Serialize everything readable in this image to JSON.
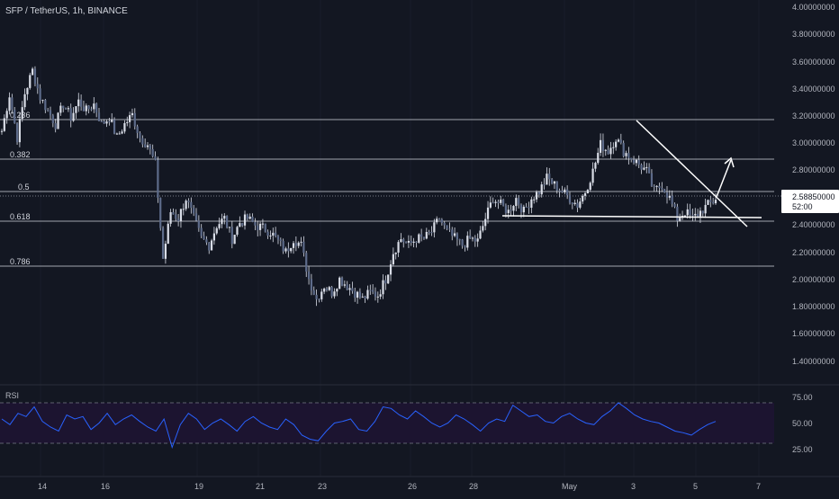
{
  "header": {
    "symbol_title": "SFP / TetherUS, 1h, BINANCE"
  },
  "price_scale": {
    "ticks": [
      "4.00000000",
      "3.80000000",
      "3.60000000",
      "3.40000000",
      "3.20000000",
      "3.00000000",
      "2.80000000",
      "2.60000000",
      "2.40000000",
      "2.20000000",
      "2.00000000",
      "1.80000000",
      "1.60000000",
      "1.40000000"
    ],
    "last_price": "2.58850000",
    "countdown": "52:00"
  },
  "rsi_panel": {
    "label": "RSI",
    "ticks": [
      "75.00",
      "50.00",
      "25.00"
    ]
  },
  "fib_labels": [
    "0.236",
    "0.382",
    "0.5",
    "0.618",
    "0.786"
  ],
  "time_axis": {
    "labels": [
      "14",
      "16",
      "19",
      "21",
      "23",
      "26",
      "28",
      "May",
      "3",
      "5",
      "7"
    ]
  },
  "colors": {
    "background": "#131722",
    "candles": "#d9dde7",
    "rsi_line": "#2962ff",
    "rsi_band": "#1c1430",
    "text": "#b2b5be",
    "last_price_bg": "#ffffff"
  },
  "chart_data": [
    {
      "type": "candlestick",
      "title": "SFP / TetherUS, 1h, BINANCE",
      "ylim": [
        1.3,
        4.0
      ],
      "y_ticks": [
        4.0,
        3.8,
        3.6,
        3.4,
        3.2,
        3.0,
        2.8,
        2.6,
        2.4,
        2.2,
        2.0,
        1.8,
        1.6,
        1.4
      ],
      "x_tick_labels": [
        "14",
        "16",
        "19",
        "21",
        "23",
        "26",
        "28",
        "May",
        "3",
        "5",
        "7"
      ],
      "fib_levels": [
        {
          "label": "0.236",
          "price": 3.16
        },
        {
          "label": "0.382",
          "price": 2.87
        },
        {
          "label": "0.5",
          "price": 2.63
        },
        {
          "label": "0.618",
          "price": 2.41
        },
        {
          "label": "0.786",
          "price": 2.08
        }
      ],
      "last_price": 2.5885,
      "price_path": [
        {
          "t": "13 00:00",
          "p": 3.1
        },
        {
          "t": "13 06:00",
          "p": 3.37
        },
        {
          "t": "13 12:00",
          "p": 3.05
        },
        {
          "t": "13 18:00",
          "p": 3.38
        },
        {
          "t": "14 00:00",
          "p": 3.55
        },
        {
          "t": "14 06:00",
          "p": 3.35
        },
        {
          "t": "14 12:00",
          "p": 3.25
        },
        {
          "t": "14 18:00",
          "p": 3.15
        },
        {
          "t": "15 00:00",
          "p": 3.3
        },
        {
          "t": "15 06:00",
          "p": 3.2
        },
        {
          "t": "15 12:00",
          "p": 3.32
        },
        {
          "t": "15 18:00",
          "p": 3.25
        },
        {
          "t": "16 00:00",
          "p": 3.3
        },
        {
          "t": "16 06:00",
          "p": 3.15
        },
        {
          "t": "16 12:00",
          "p": 3.2
        },
        {
          "t": "16 18:00",
          "p": 3.05
        },
        {
          "t": "17 00:00",
          "p": 3.15
        },
        {
          "t": "17 06:00",
          "p": 3.22
        },
        {
          "t": "17 12:00",
          "p": 3.05
        },
        {
          "t": "17 18:00",
          "p": 3.0
        },
        {
          "t": "18 00:00",
          "p": 2.85
        },
        {
          "t": "18 03:00",
          "p": 2.15
        },
        {
          "t": "18 12:00",
          "p": 2.5
        },
        {
          "t": "18 18:00",
          "p": 2.45
        },
        {
          "t": "19 00:00",
          "p": 2.6
        },
        {
          "t": "19 06:00",
          "p": 2.45
        },
        {
          "t": "19 12:00",
          "p": 2.3
        },
        {
          "t": "19 18:00",
          "p": 2.25
        },
        {
          "t": "20 00:00",
          "p": 2.4
        },
        {
          "t": "20 06:00",
          "p": 2.45
        },
        {
          "t": "20 12:00",
          "p": 2.3
        },
        {
          "t": "20 18:00",
          "p": 2.42
        },
        {
          "t": "21 00:00",
          "p": 2.45
        },
        {
          "t": "21 06:00",
          "p": 2.4
        },
        {
          "t": "21 12:00",
          "p": 2.38
        },
        {
          "t": "21 18:00",
          "p": 2.35
        },
        {
          "t": "22 00:00",
          "p": 2.28
        },
        {
          "t": "22 06:00",
          "p": 2.2
        },
        {
          "t": "22 12:00",
          "p": 2.3
        },
        {
          "t": "22 18:00",
          "p": 2.25
        },
        {
          "t": "23 00:00",
          "p": 2.0
        },
        {
          "t": "23 06:00",
          "p": 1.85
        },
        {
          "t": "23 12:00",
          "p": 1.95
        },
        {
          "t": "23 18:00",
          "p": 1.9
        },
        {
          "t": "24 00:00",
          "p": 2.0
        },
        {
          "t": "24 06:00",
          "p": 1.95
        },
        {
          "t": "24 12:00",
          "p": 1.9
        },
        {
          "t": "24 18:00",
          "p": 1.85
        },
        {
          "t": "25 00:00",
          "p": 1.9
        },
        {
          "t": "25 06:00",
          "p": 1.88
        },
        {
          "t": "25 12:00",
          "p": 2.0
        },
        {
          "t": "25 18:00",
          "p": 2.2
        },
        {
          "t": "26 00:00",
          "p": 2.3
        },
        {
          "t": "26 06:00",
          "p": 2.25
        },
        {
          "t": "26 12:00",
          "p": 2.3
        },
        {
          "t": "26 18:00",
          "p": 2.3
        },
        {
          "t": "27 00:00",
          "p": 2.35
        },
        {
          "t": "27 06:00",
          "p": 2.45
        },
        {
          "t": "27 12:00",
          "p": 2.35
        },
        {
          "t": "27 18:00",
          "p": 2.3
        },
        {
          "t": "28 00:00",
          "p": 2.25
        },
        {
          "t": "28 06:00",
          "p": 2.3
        },
        {
          "t": "28 12:00",
          "p": 2.28
        },
        {
          "t": "28 18:00",
          "p": 2.45
        },
        {
          "t": "29 00:00",
          "p": 2.6
        },
        {
          "t": "29 06:00",
          "p": 2.55
        },
        {
          "t": "29 12:00",
          "p": 2.5
        },
        {
          "t": "29 18:00",
          "p": 2.6
        },
        {
          "t": "30 00:00",
          "p": 2.5
        },
        {
          "t": "30 06:00",
          "p": 2.6
        },
        {
          "t": "30 12:00",
          "p": 2.65
        },
        {
          "t": "30 18:00",
          "p": 2.75
        },
        {
          "t": "May 1 00:00",
          "p": 2.7
        },
        {
          "t": "May 1 06:00",
          "p": 2.65
        },
        {
          "t": "May 1 12:00",
          "p": 2.6
        },
        {
          "t": "May 1 18:00",
          "p": 2.55
        },
        {
          "t": "May 2 00:00",
          "p": 2.65
        },
        {
          "t": "May 2 06:00",
          "p": 2.8
        },
        {
          "t": "May 2 12:00",
          "p": 3.0
        },
        {
          "t": "May 2 18:00",
          "p": 2.95
        },
        {
          "t": "May 3 00:00",
          "p": 3.05
        },
        {
          "t": "May 3 06:00",
          "p": 2.95
        },
        {
          "t": "May 3 12:00",
          "p": 2.9
        },
        {
          "t": "May 3 18:00",
          "p": 2.85
        },
        {
          "t": "May 4 00:00",
          "p": 2.8
        },
        {
          "t": "May 4 06:00",
          "p": 2.65
        },
        {
          "t": "May 4 12:00",
          "p": 2.7
        },
        {
          "t": "May 4 18:00",
          "p": 2.6
        },
        {
          "t": "May 5 00:00",
          "p": 2.45
        },
        {
          "t": "May 5 06:00",
          "p": 2.5
        },
        {
          "t": "May 5 12:00",
          "p": 2.45
        },
        {
          "t": "May 5 18:00",
          "p": 2.5
        },
        {
          "t": "May 6 00:00",
          "p": 2.55
        },
        {
          "t": "May 6 03:00",
          "p": 2.5885
        }
      ],
      "annotations": [
        {
          "kind": "horizontal_support_line",
          "price": 2.46,
          "from": "28 18:00",
          "to": "May 6 18:00"
        },
        {
          "kind": "descending_trendline",
          "from": {
            "t": "May 3 00:00",
            "price": 3.16
          },
          "to": {
            "t": "May 7 00:00",
            "price": 2.38
          }
        },
        {
          "kind": "breakout_arrow",
          "from": {
            "t": "May 6 06:00",
            "price": 2.62
          },
          "to": {
            "t": "May 6 18:00",
            "price": 2.88
          }
        }
      ]
    },
    {
      "type": "line",
      "title": "RSI",
      "ylim": [
        15,
        80
      ],
      "y_ticks": [
        75,
        50,
        25
      ],
      "bands": [
        70,
        30
      ],
      "values": [
        55,
        48,
        62,
        58,
        70,
        52,
        45,
        40,
        60,
        55,
        58,
        42,
        50,
        62,
        48,
        55,
        60,
        52,
        45,
        40,
        55,
        20,
        48,
        62,
        55,
        42,
        50,
        55,
        48,
        40,
        52,
        58,
        50,
        45,
        42,
        55,
        48,
        35,
        30,
        28,
        40,
        50,
        52,
        55,
        42,
        40,
        52,
        70,
        68,
        60,
        55,
        65,
        58,
        50,
        45,
        50,
        60,
        55,
        48,
        40,
        50,
        55,
        52,
        72,
        65,
        58,
        60,
        52,
        50,
        58,
        62,
        55,
        50,
        48,
        58,
        65,
        75,
        68,
        60,
        55,
        52,
        50,
        45,
        40,
        38,
        35,
        42,
        48,
        52
      ]
    }
  ]
}
